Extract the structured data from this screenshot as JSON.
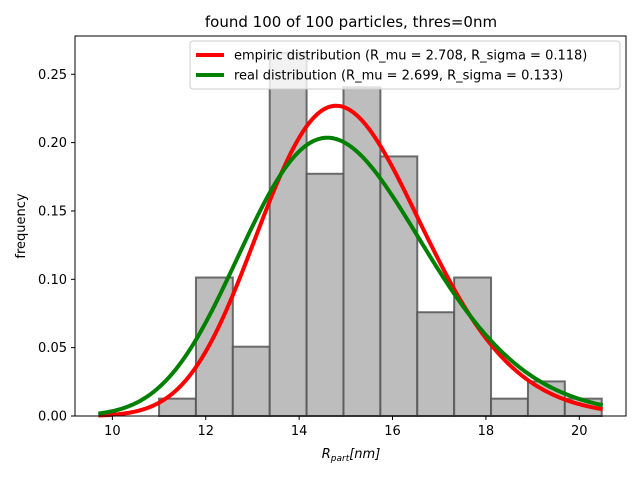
{
  "chart_data": {
    "type": "bar",
    "title": "found 100 of 100 particles, thres=0nm",
    "xlabel": "R_part[nm]",
    "xlabel_main": "R",
    "xlabel_sub": "part",
    "xlabel_unit": "[nm]",
    "ylabel": "frequency",
    "xlim": [
      9.2,
      21.0
    ],
    "ylim": [
      0,
      0.278
    ],
    "x_ticks": [
      10,
      12,
      14,
      16,
      18,
      20
    ],
    "y_ticks": [
      0.0,
      0.05,
      0.1,
      0.15,
      0.2,
      0.25
    ],
    "y_tick_labels": [
      "0.00",
      "0.05",
      "0.10",
      "0.15",
      "0.20",
      "0.25"
    ],
    "grid": false,
    "legend_position": "top-right",
    "histogram": {
      "bin_edges": [
        11.0,
        11.79,
        12.58,
        13.37,
        14.16,
        14.95,
        15.74,
        16.53,
        17.32,
        18.11,
        18.9,
        19.69,
        20.48
      ],
      "values": [
        0.0127,
        0.1013,
        0.0507,
        0.2658,
        0.1772,
        0.2405,
        0.1899,
        0.0759,
        0.1013,
        0.0127,
        0.0253,
        0.0127
      ],
      "fill_color": "#bdbdbd",
      "edge_color": "#555555"
    },
    "series": [
      {
        "name": "empiric distribution (R_mu = 2.708, R_sigma = 0.118)",
        "kind": "lognormal-curve",
        "mu": 2.708,
        "sigma": 0.118,
        "x_range": [
          9.7,
          20.5
        ],
        "color": "#ff0000"
      },
      {
        "name": "real distribution (R_mu = 2.699, R_sigma = 0.133)",
        "kind": "lognormal-curve",
        "mu": 2.699,
        "sigma": 0.133,
        "x_range": [
          9.7,
          20.5
        ],
        "color": "#008000"
      }
    ]
  }
}
